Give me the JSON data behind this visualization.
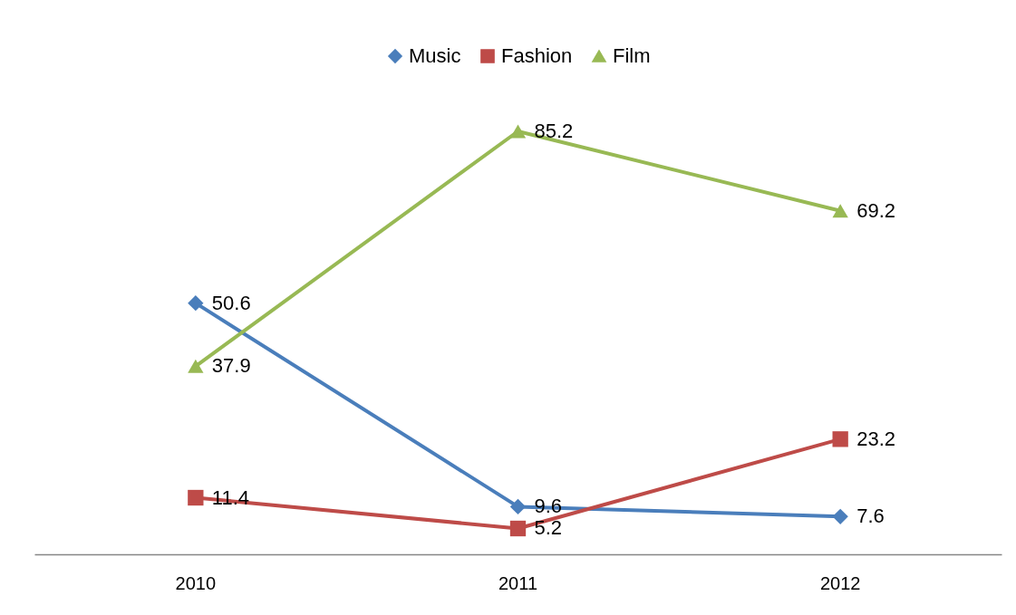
{
  "chart_data": {
    "type": "line",
    "categories": [
      "2010",
      "2011",
      "2012"
    ],
    "series": [
      {
        "name": "Music",
        "color": "#4a7ebb",
        "marker": "diamond",
        "values": [
          50.6,
          9.6,
          7.6
        ]
      },
      {
        "name": "Fashion",
        "color": "#be4b48",
        "marker": "square",
        "values": [
          11.4,
          5.2,
          23.2
        ]
      },
      {
        "name": "Film",
        "color": "#98b954",
        "marker": "triangle",
        "values": [
          37.9,
          85.2,
          69.2
        ]
      }
    ],
    "data_labels": true,
    "legend": "top",
    "grid": false,
    "tick_labels": "x"
  }
}
